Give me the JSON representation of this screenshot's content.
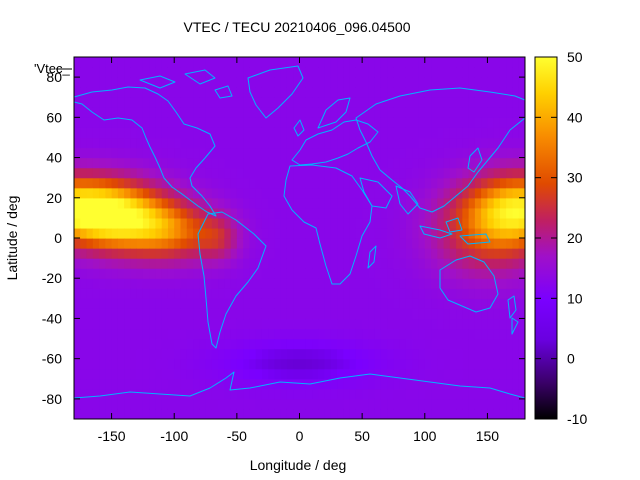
{
  "chart_data": {
    "type": "heatmap",
    "title": "VTEC / TECU 20210406_096.04500",
    "xlabel": "Longitude / deg",
    "ylabel": "Latitude / deg",
    "xlim": [
      -180,
      180
    ],
    "ylim": [
      -90,
      90
    ],
    "x_ticks": [
      -150,
      -100,
      -50,
      0,
      50,
      100,
      150
    ],
    "y_ticks": [
      -80,
      -60,
      -40,
      -20,
      0,
      20,
      40,
      60,
      80
    ],
    "colorbar": {
      "range": [
        -10,
        50
      ],
      "ticks": [
        -10,
        0,
        10,
        20,
        30,
        40,
        50
      ],
      "palette": [
        "#000000",
        "#3a0068",
        "#7a00ff",
        "#a010c8",
        "#c02060",
        "#e04a00",
        "#f88c00",
        "#ffd000",
        "#ffff30"
      ]
    },
    "series": [
      {
        "name": "'Vtec_",
        "grid_resolution_deg": [
          5,
          5
        ],
        "background_tecu": 8,
        "anomalies": [
          {
            "lon": -180,
            "lat": 15,
            "sigma_lon": 38,
            "sigma_lat": 11,
            "peak_tecu": 39
          },
          {
            "lon": -140,
            "lat": 8,
            "sigma_lon": 28,
            "sigma_lat": 11,
            "peak_tecu": 24
          },
          {
            "lon": -100,
            "lat": 3,
            "sigma_lon": 24,
            "sigma_lat": 10,
            "peak_tecu": 18
          },
          {
            "lon": -65,
            "lat": 0,
            "sigma_lon": 12,
            "sigma_lat": 8,
            "peak_tecu": 10
          },
          {
            "lon": 180,
            "lat": 15,
            "sigma_lon": 30,
            "sigma_lat": 12,
            "peak_tecu": 33
          },
          {
            "lon": 150,
            "lat": 3,
            "sigma_lon": 30,
            "sigma_lat": 15,
            "peak_tecu": 17
          },
          {
            "lon": 0,
            "lat": -62,
            "sigma_lon": 45,
            "sigma_lat": 8,
            "peak_tecu": -5
          }
        ]
      }
    ],
    "overlay": "coastlines",
    "legend_position": "top-left",
    "grid": false
  }
}
